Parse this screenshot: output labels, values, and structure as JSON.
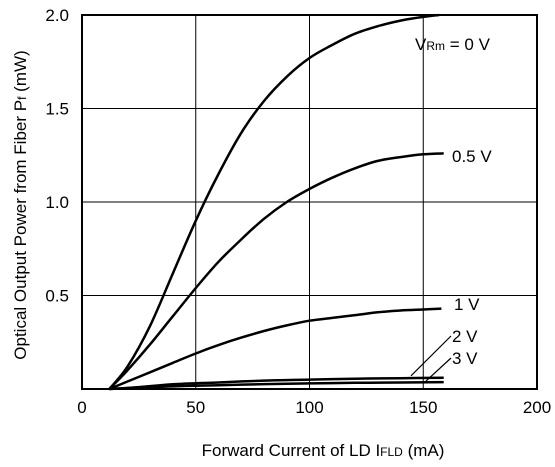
{
  "chart_data": {
    "type": "line",
    "title": "",
    "xlabel": {
      "main": "Forward Current of LD  I",
      "sub": "FLD",
      "unit": " (mA)"
    },
    "ylabel": {
      "main": "Optical Output Power from Fiber  P",
      "sub": "f",
      "unit": " (mW)"
    },
    "xlim": [
      0,
      200
    ],
    "ylim": [
      0,
      2.0
    ],
    "xticks": [
      0,
      50,
      100,
      150,
      200
    ],
    "xtick_labels": [
      "0",
      "50",
      "100",
      "150",
      "200"
    ],
    "yticks": [
      0.5,
      1.0,
      1.5,
      2.0
    ],
    "ytick_labels": [
      "0.5",
      "1.0",
      "1.5",
      "2.0"
    ],
    "grid": true,
    "series": [
      {
        "name": "VRm = 0 V",
        "label_parts": {
          "pre": "V",
          "sub": "Rm",
          "post": " = 0 V"
        },
        "x": [
          12,
          20,
          30,
          40,
          50,
          60,
          70,
          80,
          90,
          100,
          110,
          120,
          130,
          140,
          150,
          157
        ],
        "y": [
          0,
          0.12,
          0.34,
          0.62,
          0.9,
          1.15,
          1.37,
          1.54,
          1.67,
          1.77,
          1.84,
          1.9,
          1.94,
          1.97,
          1.99,
          2.0
        ]
      },
      {
        "name": "0.5 V",
        "label_parts": {
          "pre": "0.5 V",
          "sub": "",
          "post": ""
        },
        "x": [
          12,
          20,
          30,
          40,
          50,
          60,
          70,
          80,
          90,
          100,
          110,
          120,
          130,
          140,
          150,
          159
        ],
        "y": [
          0,
          0.1,
          0.24,
          0.39,
          0.54,
          0.68,
          0.8,
          0.91,
          1.0,
          1.07,
          1.13,
          1.18,
          1.22,
          1.24,
          1.255,
          1.26
        ]
      },
      {
        "name": "1 V",
        "label_parts": {
          "pre": "1 V",
          "sub": "",
          "post": ""
        },
        "x": [
          12,
          20,
          30,
          40,
          50,
          60,
          70,
          80,
          90,
          100,
          110,
          120,
          130,
          140,
          150,
          158
        ],
        "y": [
          0,
          0.04,
          0.09,
          0.14,
          0.19,
          0.235,
          0.275,
          0.31,
          0.34,
          0.365,
          0.38,
          0.395,
          0.41,
          0.42,
          0.425,
          0.43
        ]
      },
      {
        "name": "2 V",
        "label_parts": {
          "pre": "2 V",
          "sub": "",
          "post": ""
        },
        "x": [
          12,
          25,
          40,
          60,
          80,
          100,
          120,
          140,
          159
        ],
        "y": [
          0,
          0.01,
          0.025,
          0.035,
          0.045,
          0.05,
          0.055,
          0.058,
          0.06
        ]
      },
      {
        "name": "3 V",
        "label_parts": {
          "pre": "3 V",
          "sub": "",
          "post": ""
        },
        "x": [
          12,
          25,
          40,
          60,
          80,
          100,
          120,
          140,
          159
        ],
        "y": [
          0,
          0.006,
          0.014,
          0.02,
          0.026,
          0.03,
          0.033,
          0.035,
          0.037
        ]
      }
    ]
  }
}
